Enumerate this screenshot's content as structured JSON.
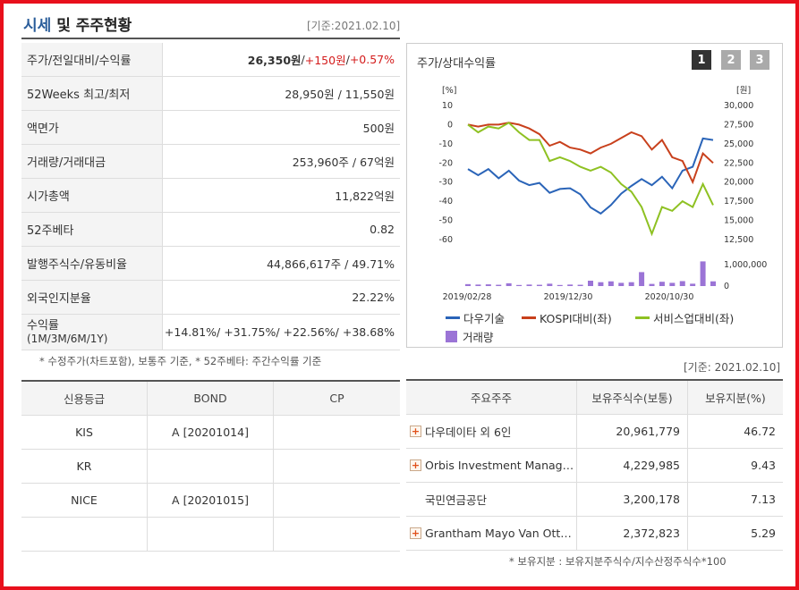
{
  "header": {
    "title_part1": "시세",
    "title_part2": " 및 주주현황",
    "date": "[기준:2021.02.10]"
  },
  "price_table": [
    {
      "label": "주가/전일대비/수익률",
      "v1": "26,350원",
      "v2": " / ",
      "v3": "+150원",
      "v4": " / ",
      "v5": "+0.57%"
    },
    {
      "label": "52Weeks 최고/최저",
      "value": "28,950원 / 11,550원"
    },
    {
      "label": "액면가",
      "value": "500원"
    },
    {
      "label": "거래량/거래대금",
      "value": "253,960주 / 67억원"
    },
    {
      "label": "시가총액",
      "value": "11,822억원"
    },
    {
      "label": "52주베타",
      "value": "0.82"
    },
    {
      "label": "발행주식수/유동비율",
      "value": "44,866,617주 / 49.71%"
    },
    {
      "label": "외국인지분율",
      "value": "22.22%"
    }
  ],
  "returns": {
    "label_line1": "수익률",
    "label_line2": "(1M/3M/6M/1Y)",
    "value": "+14.81%/ +31.75%/ +22.56%/ +38.68%"
  },
  "note_left": "* 수정주가(차트포함), 보통주 기준, * 52주베타: 주간수익률 기준",
  "credit": {
    "headers": [
      "신용등급",
      "BOND",
      "CP"
    ],
    "rows": [
      [
        "KIS",
        "A [20201014]",
        ""
      ],
      [
        "KR",
        "",
        ""
      ],
      [
        "NICE",
        "A [20201015]",
        ""
      ],
      [
        "",
        "",
        ""
      ]
    ]
  },
  "chart_panel": {
    "title": "주가/상대수익률",
    "tabs": [
      "1",
      "2",
      "3"
    ]
  },
  "chart_data": {
    "type": "line",
    "left_axis_unit": "[%]",
    "right_axis_unit": "[원]",
    "left_ticks": [
      "10",
      "0",
      "-10",
      "-20",
      "-30",
      "-40",
      "-50",
      "-60"
    ],
    "right_ticks": [
      "30,000",
      "27,500",
      "25,000",
      "22,500",
      "20,000",
      "17,500",
      "15,000",
      "12,500"
    ],
    "ylim_left": [
      -60,
      10
    ],
    "ylim_right": [
      12500,
      30000
    ],
    "volume_ticks": [
      "1,000,000",
      "0"
    ],
    "x_labels": [
      "2019/02/28",
      "2019/12/30",
      "2020/10/30"
    ],
    "series": [
      {
        "name": "다우기술",
        "axis": "right",
        "color": "#2a64b8",
        "values": [
          21700,
          20900,
          21700,
          20500,
          21500,
          20200,
          19600,
          19900,
          18600,
          19100,
          19200,
          18400,
          16700,
          15900,
          17000,
          18500,
          19500,
          20400,
          19600,
          20700,
          19200,
          21500,
          22000,
          25700,
          25500
        ]
      },
      {
        "name": "KOSPI대비(좌)",
        "axis": "left",
        "color": "#c8401c",
        "values": [
          0,
          -1,
          0,
          0,
          1,
          0,
          -2,
          -5,
          -11,
          -9,
          -12,
          -13,
          -15,
          -12,
          -10,
          -7,
          -4,
          -6,
          -13,
          -8,
          -17,
          -19,
          -30,
          -15,
          -20
        ]
      },
      {
        "name": "서비스업대비(좌)",
        "axis": "left",
        "color": "#8ec122",
        "values": [
          0,
          -4,
          -1,
          -2,
          1,
          -4,
          -8,
          -8,
          -19,
          -17,
          -19,
          -22,
          -24,
          -22,
          -25,
          -31,
          -35,
          -43,
          -57,
          -43,
          -45,
          -40,
          -43,
          -31,
          -42
        ]
      },
      {
        "name": "거래량",
        "axis": "volume",
        "color": "#9b74d6",
        "values": [
          90000,
          70000,
          80000,
          60000,
          130000,
          50000,
          70000,
          60000,
          110000,
          50000,
          70000,
          60000,
          250000,
          180000,
          220000,
          150000,
          180000,
          650000,
          100000,
          200000,
          150000,
          230000,
          110000,
          1150000,
          220000
        ]
      }
    ]
  },
  "legend": [
    "다우기술",
    "KOSPI대비(좌)",
    "서비스업대비(좌)",
    "거래량"
  ],
  "date_right": "[기준: 2021.02.10]",
  "shareholders": {
    "headers": [
      "주요주주",
      "보유주식수(보통)",
      "보유지분(%)"
    ],
    "rows": [
      {
        "name": "다우데이타 외 6인",
        "shares": "20,961,779",
        "pct": "46.72",
        "expand": true
      },
      {
        "name": "Orbis Investment Manag…",
        "shares": "4,229,985",
        "pct": "9.43",
        "expand": true
      },
      {
        "name": "국민연금공단",
        "shares": "3,200,178",
        "pct": "7.13",
        "expand": false
      },
      {
        "name": "Grantham Mayo Van Ott…",
        "shares": "2,372,823",
        "pct": "5.29",
        "expand": true
      }
    ]
  },
  "note_right": "* 보유지분 : 보유지분주식수/지수산정주식수*100"
}
